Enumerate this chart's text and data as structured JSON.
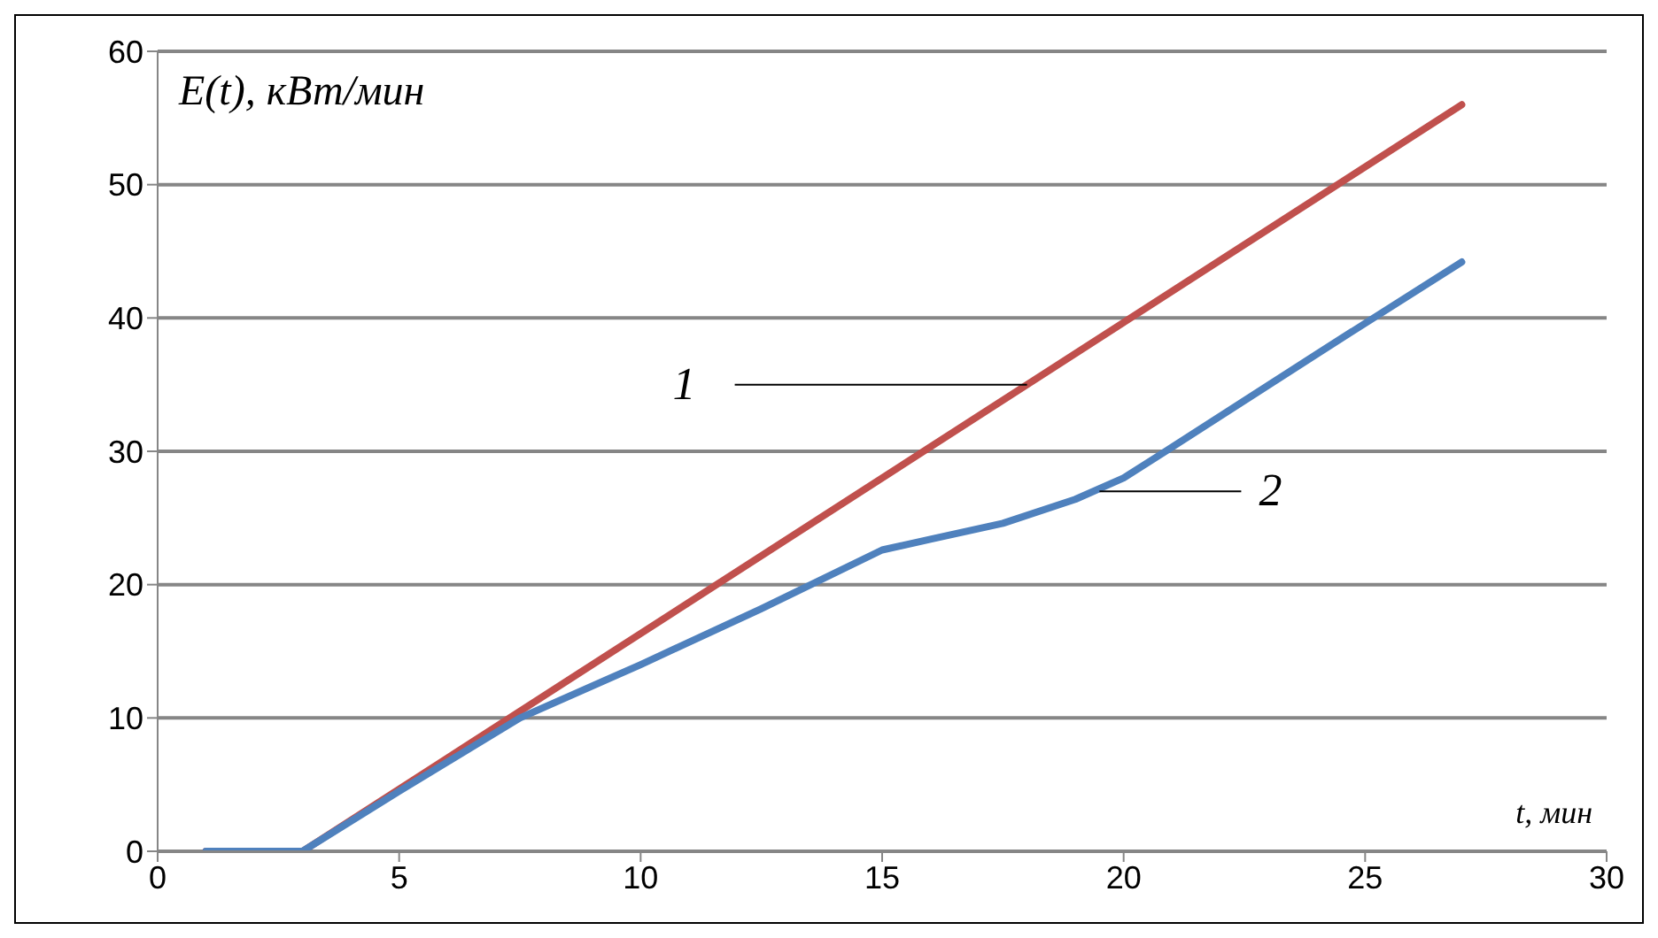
{
  "chart_data": {
    "type": "line",
    "xlabel": "t, мин",
    "ylabel": "E(t), кВт/мин",
    "xlim": [
      0,
      30
    ],
    "xticks": [
      0,
      5,
      10,
      15,
      20,
      25,
      30
    ],
    "ylim": [
      0,
      60
    ],
    "yticks": [
      0,
      10,
      20,
      30,
      40,
      50,
      60
    ],
    "grid": "y",
    "marker": "none",
    "line_style": "solid",
    "series": [
      {
        "color": "#c0504d",
        "x": [
          1,
          2,
          3,
          27
        ],
        "values": [
          0,
          0,
          0,
          56
        ]
      },
      {
        "color": "#4f81bd",
        "x": [
          1,
          2,
          3,
          5,
          7.5,
          10,
          12.5,
          15,
          16,
          17.5,
          19,
          20,
          21,
          24,
          27
        ],
        "values": [
          0,
          0,
          0,
          4.5,
          10,
          14,
          18.2,
          22.6,
          23.4,
          24.6,
          26.4,
          28,
          30.3,
          37.3,
          44.2
        ]
      }
    ],
    "annotations": [
      {
        "text": "1",
        "x": 18,
        "y": 35
      },
      {
        "text": "2",
        "x": 19.5,
        "y": 27
      }
    ]
  }
}
